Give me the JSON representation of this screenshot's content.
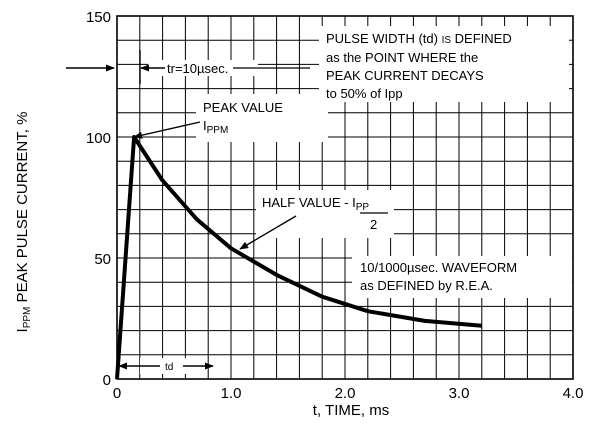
{
  "chart_data": {
    "type": "line",
    "title": "",
    "xlabel": "t, TIME, ms",
    "ylabel": {
      "prefix": "I",
      "subscript": "PPM",
      "text": " PEAK PULSE CURRENT, %"
    },
    "xlim": [
      0,
      4.0
    ],
    "ylim": [
      0,
      150
    ],
    "x_ticks": [
      "0",
      "1.0",
      "2.0",
      "3.0",
      "4.0"
    ],
    "y_ticks": [
      "0",
      "50",
      "100",
      "150"
    ],
    "grid": true,
    "legend": "none",
    "series": [
      {
        "x": [
          0,
          0.15,
          0.4,
          0.7,
          1.0,
          1.4,
          1.8,
          2.2,
          2.7,
          3.2
        ],
        "y": [
          0,
          100,
          82,
          66,
          54,
          43,
          34,
          28,
          24,
          22
        ]
      }
    ],
    "annotations": {
      "tr": "tr=10µsec.",
      "pulse_width": [
        {
          "text": "PULSE WIDTH (td) ",
          "small": "IS",
          "after": " DEFINED"
        },
        {
          "text": "as the POINT WHERE the"
        },
        {
          "text": "PEAK CURRENT DECAYS"
        },
        {
          "text": "to 50% of Ipp"
        }
      ],
      "peak_value": {
        "line1": "PEAK VALUE",
        "symbol": "I",
        "subscript": "PPM"
      },
      "half_value": {
        "text": "HALF VALUE - ",
        "numerator_symbol": "I",
        "numerator_subscript": "PP",
        "denominator": "2"
      },
      "waveform": [
        "10/1000µsec. WAVEFORM",
        "as DEFINED by R.E.A."
      ],
      "td": "td"
    }
  }
}
